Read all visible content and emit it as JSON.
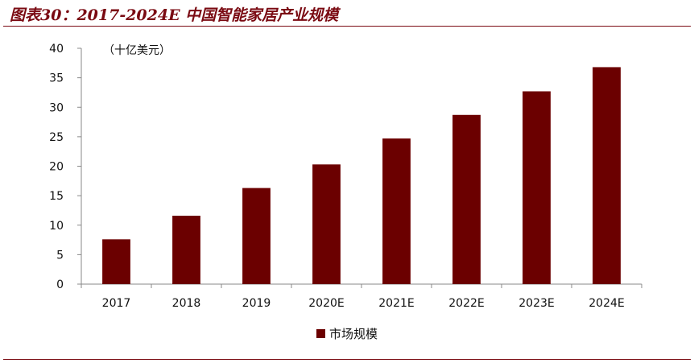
{
  "figure": {
    "title": "图表30：2017-2024E 中国智能家居产业规模"
  },
  "chart_data": {
    "type": "bar",
    "title": "",
    "unit_label": "（十亿美元）",
    "xlabel": "",
    "ylabel": "",
    "categories": [
      "2017",
      "2018",
      "2019",
      "2020E",
      "2021E",
      "2022E",
      "2023E",
      "2024E"
    ],
    "series": [
      {
        "name": "市场规模",
        "values": [
          7.6,
          11.6,
          16.3,
          20.3,
          24.7,
          28.7,
          32.7,
          36.8
        ]
      }
    ],
    "ylim": [
      0,
      40
    ],
    "yticks": [
      0,
      5,
      10,
      15,
      20,
      25,
      30,
      35,
      40
    ],
    "grid": false,
    "legend_position": "bottom-center",
    "bar_color": "#6b0000"
  }
}
